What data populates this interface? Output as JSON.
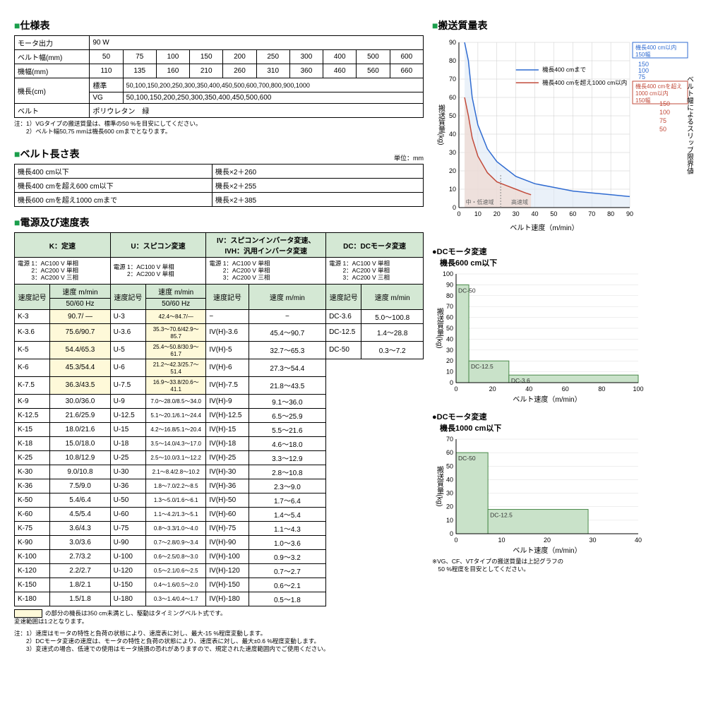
{
  "spec": {
    "title": "仕様表",
    "rows": {
      "motor_label": "モータ出力",
      "motor_value": "90 W",
      "belt_width_label": "ベルト幅(mm)",
      "belt_width_vals": [
        "50",
        "75",
        "100",
        "150",
        "200",
        "250",
        "300",
        "400",
        "500",
        "600"
      ],
      "machine_width_label": "機幅(mm)",
      "machine_width_vals": [
        "110",
        "135",
        "160",
        "210",
        "260",
        "310",
        "360",
        "460",
        "560",
        "660"
      ],
      "machine_len_label": "機長(cm)",
      "std_label": "標準",
      "std_value": "50,100,150,200,250,300,350,400,450,500,600,700,800,900,1000",
      "vg_label": "VG",
      "vg_value": "50,100,150,200,250,300,350,400,450,500,600",
      "belt_label": "ベルト",
      "belt_value": "ポリウレタン　緑"
    },
    "notes": "注：1）VGタイプの搬送質量は、標準の50 %を目安にしてください。\n　　2）ベルト幅50,75 mmは機長600 cmまでとなります。"
  },
  "belt_len": {
    "title": "ベルト長さ表",
    "unit": "単位：mm",
    "rows": [
      [
        "機長400 cm以下",
        "機長×2＋260"
      ],
      [
        "機長400 cmを超え600 cm以下",
        "機長×2＋255"
      ],
      [
        "機長600 cmを超え1000 cmまで",
        "機長×2＋385"
      ]
    ]
  },
  "speed": {
    "title": "電源及び速度表",
    "groups": {
      "k": {
        "hdr": "K：定速",
        "ps": "電源 1：AC100 V 単相\n　　 2：AC200 V 単相\n　　 3：AC200 V 三相"
      },
      "u": {
        "hdr": "U：スピコン変速",
        "ps": "電源 1：AC100 V 単相\n　　 2：AC200 V 単相"
      },
      "iv": {
        "hdr": "IV：スピコンインバータ変速、IVH：汎用インバータ変速",
        "ps": "電源 1：AC100 V 単相\n　　 2：AC200 V 単相\n　　 3：AC200 V 三相"
      },
      "dc": {
        "hdr": "DC：DCモータ変速",
        "ps": "電源 1：AC100 V 単相\n　　 2：AC200 V 単相\n　　 3：AC200 V 三相"
      }
    },
    "col_hdrs": {
      "code": "速度記号",
      "speed_mmin": "速度 m/min",
      "hz": "50/60 Hz"
    },
    "rows": [
      {
        "k": "K-3",
        "kv": "90.7/ —",
        "u": "U-3",
        "uv": "42.4～84.7/—",
        "iv": "−",
        "ivv": "−",
        "dc": "DC-3.6",
        "dcv": "5.0～100.8",
        "hl": true
      },
      {
        "k": "K-3.6",
        "kv": "75.6/90.7",
        "u": "U-3.6",
        "uv": "35.3～70.6/42.9～85.7",
        "iv": "IV(H)-3.6",
        "ivv": "45.4～90.7",
        "dc": "DC-12.5",
        "dcv": "1.4～28.8",
        "hl": true
      },
      {
        "k": "K-5",
        "kv": "54.4/65.3",
        "u": "U-5",
        "uv": "25.4～50.8/30.9～61.7",
        "iv": "IV(H)-5",
        "ivv": "32.7～65.3",
        "dc": "DC-50",
        "dcv": "0.3～7.2",
        "hl": true
      },
      {
        "k": "K-6",
        "kv": "45.3/54.4",
        "u": "U-6",
        "uv": "21.2～42.3/25.7～51.4",
        "iv": "IV(H)-6",
        "ivv": "27.3～54.4",
        "dc": "",
        "dcv": "",
        "hl": true
      },
      {
        "k": "K-7.5",
        "kv": "36.3/43.5",
        "u": "U-7.5",
        "uv": "16.9～33.8/20.6～41.1",
        "iv": "IV(H)-7.5",
        "ivv": "21.8～43.5",
        "dc": "",
        "dcv": "",
        "hl": true
      },
      {
        "k": "K-9",
        "kv": "30.0/36.0",
        "u": "U-9",
        "uv": "7.0～28.0/8.5～34.0",
        "iv": "IV(H)-9",
        "ivv": "9.1～36.0",
        "dc": "",
        "dcv": ""
      },
      {
        "k": "K-12.5",
        "kv": "21.6/25.9",
        "u": "U-12.5",
        "uv": "5.1～20.1/6.1～24.4",
        "iv": "IV(H)-12.5",
        "ivv": "6.5～25.9",
        "dc": "",
        "dcv": ""
      },
      {
        "k": "K-15",
        "kv": "18.0/21.6",
        "u": "U-15",
        "uv": "4.2～16.8/5.1～20.4",
        "iv": "IV(H)-15",
        "ivv": "5.5～21.6",
        "dc": "",
        "dcv": ""
      },
      {
        "k": "K-18",
        "kv": "15.0/18.0",
        "u": "U-18",
        "uv": "3.5～14.0/4.3～17.0",
        "iv": "IV(H)-18",
        "ivv": "4.6～18.0",
        "dc": "",
        "dcv": ""
      },
      {
        "k": "K-25",
        "kv": "10.8/12.9",
        "u": "U-25",
        "uv": "2.5～10.0/3.1～12.2",
        "iv": "IV(H)-25",
        "ivv": "3.3～12.9",
        "dc": "",
        "dcv": ""
      },
      {
        "k": "K-30",
        "kv": "9.0/10.8",
        "u": "U-30",
        "uv": "2.1～8.4/2.8～10.2",
        "iv": "IV(H)-30",
        "ivv": "2.8～10.8",
        "dc": "",
        "dcv": ""
      },
      {
        "k": "K-36",
        "kv": "7.5/9.0",
        "u": "U-36",
        "uv": "1.8～7.0/2.2～8.5",
        "iv": "IV(H)-36",
        "ivv": "2.3～9.0",
        "dc": "",
        "dcv": ""
      },
      {
        "k": "K-50",
        "kv": "5.4/6.4",
        "u": "U-50",
        "uv": "1.3～5.0/1.6～6.1",
        "iv": "IV(H)-50",
        "ivv": "1.7～6.4",
        "dc": "",
        "dcv": ""
      },
      {
        "k": "K-60",
        "kv": "4.5/5.4",
        "u": "U-60",
        "uv": "1.1～4.2/1.3～5.1",
        "iv": "IV(H)-60",
        "ivv": "1.4～5.4",
        "dc": "",
        "dcv": ""
      },
      {
        "k": "K-75",
        "kv": "3.6/4.3",
        "u": "U-75",
        "uv": "0.8～3.3/1.0～4.0",
        "iv": "IV(H)-75",
        "ivv": "1.1～4.3",
        "dc": "",
        "dcv": ""
      },
      {
        "k": "K-90",
        "kv": "3.0/3.6",
        "u": "U-90",
        "uv": "0.7～2.8/0.9～3.4",
        "iv": "IV(H)-90",
        "ivv": "1.0～3.6",
        "dc": "",
        "dcv": ""
      },
      {
        "k": "K-100",
        "kv": "2.7/3.2",
        "u": "U-100",
        "uv": "0.6～2.5/0.8～3.0",
        "iv": "IV(H)-100",
        "ivv": "0.9～3.2",
        "dc": "",
        "dcv": ""
      },
      {
        "k": "K-120",
        "kv": "2.2/2.7",
        "u": "U-120",
        "uv": "0.5～2.1/0.6～2.5",
        "iv": "IV(H)-120",
        "ivv": "0.7～2.7",
        "dc": "",
        "dcv": ""
      },
      {
        "k": "K-150",
        "kv": "1.8/2.1",
        "u": "U-150",
        "uv": "0.4～1.6/0.5～2.0",
        "iv": "IV(H)-150",
        "ivv": "0.6～2.1",
        "dc": "",
        "dcv": ""
      },
      {
        "k": "K-180",
        "kv": "1.5/1.8",
        "u": "U-180",
        "uv": "0.3～1.4/0.4～1.7",
        "iv": "IV(H)-180",
        "ivv": "0.5～1.8",
        "dc": "",
        "dcv": ""
      }
    ],
    "legend_note": "の部分の機長は350 cm未満とし、駆動はタイミングベルト式です。\n変速範囲は1:2となります。",
    "bottom_notes": "注：1）速度はモータの特性と負荷の状態により、速度表に対し、最大-15 %程度変動します。\n　　2）DCモータ変速の速度は、モータの特性と負荷の状態により、速度表に対し、最大±0.6 %程度変動します。\n　　3）変速式の場合、低速での使用はモータ焼損の恐れがありますので、規定された速度範囲内でご使用ください。"
  },
  "mass_chart": {
    "title": "搬送質量表",
    "y_label": "搬送質量(kg)",
    "x_label": "ベルト速度（m/min）",
    "right_label": "ベルト幅によるスリップ限界値",
    "y_ticks": [
      0,
      10,
      20,
      30,
      40,
      50,
      60,
      70,
      80,
      90
    ],
    "x_ticks": [
      0,
      10,
      20,
      30,
      40,
      50,
      60,
      70,
      80,
      90
    ],
    "curves": {
      "blue": {
        "label": "機長400 cmまで",
        "color": "#2f6bd1",
        "pts": [
          [
            3,
            90
          ],
          [
            5,
            80
          ],
          [
            7,
            60
          ],
          [
            10,
            45
          ],
          [
            15,
            32
          ],
          [
            20,
            25
          ],
          [
            30,
            17
          ],
          [
            40,
            13
          ],
          [
            50,
            11
          ],
          [
            60,
            9
          ],
          [
            70,
            8
          ],
          [
            80,
            7
          ],
          [
            90,
            6
          ]
        ]
      },
      "red": {
        "label": "機長400 cmを超え1000 cm以内",
        "color": "#c24b3b",
        "pts": [
          [
            3,
            60
          ],
          [
            5,
            50
          ],
          [
            7,
            38
          ],
          [
            10,
            28
          ],
          [
            15,
            19
          ],
          [
            20,
            14
          ],
          [
            25,
            12
          ],
          [
            30,
            10
          ],
          [
            35,
            8
          ],
          [
            38,
            7
          ]
        ]
      }
    },
    "box_blue": {
      "label1": "機長400 cm以内",
      "label2": "150幅",
      "color": "#2f6bd1"
    },
    "box_red": {
      "label1": "機長400 cmを超え",
      "label2": "1000 cm以内",
      "label3": "150幅",
      "color": "#c24b3b"
    },
    "right_ticks_blue": [
      "150",
      "100",
      "75"
    ],
    "right_ticks_red": [
      "150",
      "100",
      "75",
      "50"
    ],
    "zones": {
      "low": "中・低速域",
      "high": "高速域"
    },
    "fill_blue": "#dce8f5",
    "fill_red": "#f0d8d0"
  },
  "dc600": {
    "title": "●DCモータ変速\n　機長600 cm以下",
    "y_label": "搬送質量(kg)",
    "x_label": "ベルト速度（m/min）",
    "y_ticks": [
      0,
      10,
      20,
      30,
      40,
      50,
      60,
      70,
      80,
      90,
      100
    ],
    "x_ticks": [
      0,
      20,
      40,
      60,
      80,
      100
    ],
    "bars": [
      {
        "label": "DC-50",
        "x0": 0,
        "x1": 7,
        "h": 90
      },
      {
        "label": "DC-12.5",
        "x0": 7,
        "x1": 29,
        "h": 20
      },
      {
        "label": "DC-3.6",
        "x0": 29,
        "x1": 100,
        "h": 7
      }
    ],
    "bar_fill": "#c9e2c9",
    "bar_stroke": "#4a8a4a"
  },
  "dc1000": {
    "title": "●DCモータ変速\n　機長1000 cm以下",
    "y_label": "搬送質量(kg)",
    "x_label": "ベルト速度（m/min）",
    "y_ticks": [
      0,
      10,
      20,
      30,
      40,
      50,
      60,
      70
    ],
    "x_ticks": [
      0,
      10,
      20,
      30,
      40
    ],
    "bars": [
      {
        "label": "DC-50",
        "x0": 0,
        "x1": 7,
        "h": 60
      },
      {
        "label": "DC-12.5",
        "x0": 7,
        "x1": 29,
        "h": 18
      }
    ],
    "bar_fill": "#c9e2c9",
    "bar_stroke": "#4a8a4a",
    "footnote": "※VG、CF、VTタイプの搬送質量は上記グラフの\n　50 %程度を目安としてください。"
  }
}
